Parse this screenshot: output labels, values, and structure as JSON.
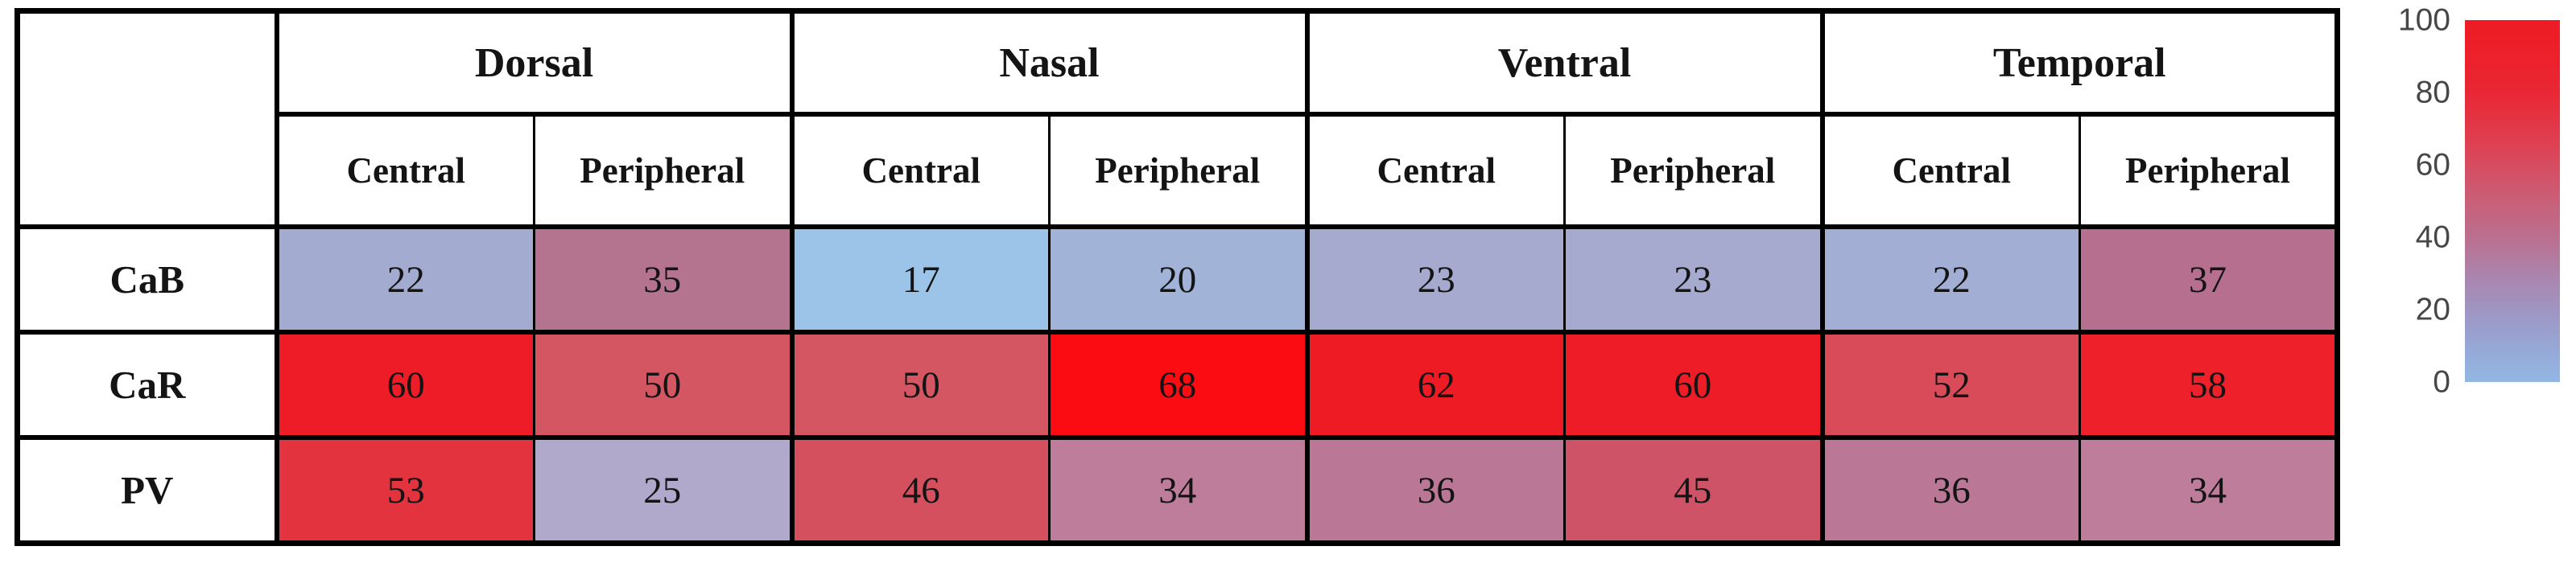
{
  "figure": {
    "background": "#ffffff",
    "border_color": "#000000",
    "number_text_color": "#141414"
  },
  "chart_data": {
    "type": "heatmap",
    "title": "",
    "corner_label": "",
    "column_groups": [
      {
        "label": "Dorsal",
        "sub_columns": [
          "Central",
          "Peripheral"
        ]
      },
      {
        "label": "Nasal",
        "sub_columns": [
          "Central",
          "Peripheral"
        ]
      },
      {
        "label": "Ventral",
        "sub_columns": [
          "Central",
          "Peripheral"
        ]
      },
      {
        "label": "Temporal",
        "sub_columns": [
          "Central",
          "Peripheral"
        ]
      }
    ],
    "rows": [
      {
        "label": "CaB",
        "values": [
          22,
          35,
          17,
          20,
          23,
          23,
          22,
          37
        ],
        "cell_colors": [
          "#a3abd1",
          "#b4738f",
          "#9cc4e8",
          "#a2b3d8",
          "#a6aacf",
          "#a6aacf",
          "#a3aed4",
          "#b76f90"
        ]
      },
      {
        "label": "CaR",
        "values": [
          60,
          50,
          50,
          68,
          62,
          60,
          52,
          58
        ],
        "cell_colors": [
          "#ed1c26",
          "#d55663",
          "#d55663",
          "#fb0c12",
          "#ee1b24",
          "#ed1c26",
          "#d94b59",
          "#ee2029"
        ]
      },
      {
        "label": "PV",
        "values": [
          53,
          25,
          46,
          34,
          36,
          45,
          36,
          34
        ],
        "cell_colors": [
          "#e2333f",
          "#b0a9cb",
          "#d5505f",
          "#bd7d9b",
          "#ba7896",
          "#cf5366",
          "#ba7896",
          "#bd7d9b"
        ]
      }
    ],
    "value_range": [
      0,
      100
    ],
    "grid": true,
    "legend_position": "right",
    "colorbar": {
      "ticks": [
        100,
        80,
        60,
        40,
        20,
        0
      ],
      "tick_text_color": "#474747",
      "gradient_stops": [
        {
          "pos": 0.0,
          "color": "#ee1b23"
        },
        {
          "pos": 0.2,
          "color": "#e92734"
        },
        {
          "pos": 0.35,
          "color": "#dd4254"
        },
        {
          "pos": 0.5,
          "color": "#c95f78"
        },
        {
          "pos": 0.62,
          "color": "#b87394"
        },
        {
          "pos": 0.72,
          "color": "#a987b0"
        },
        {
          "pos": 0.82,
          "color": "#9d98c6"
        },
        {
          "pos": 0.92,
          "color": "#96aad8"
        },
        {
          "pos": 1.0,
          "color": "#92b7e4"
        }
      ]
    }
  }
}
